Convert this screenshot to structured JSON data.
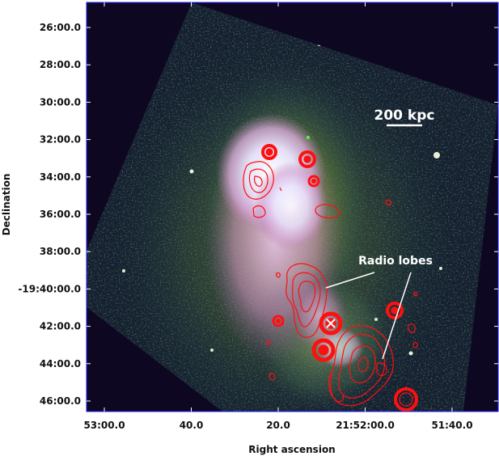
{
  "axes": {
    "xlabel": "Right ascension",
    "ylabel": "Declination",
    "x_ticks": [
      "53:00.0",
      "40.0",
      "20.0",
      "21:52:00.0",
      "51:40.0"
    ],
    "y_ticks": [
      "26:00.0",
      "28:00.0",
      "30:00.0",
      "32:00.0",
      "34:00.0",
      "36:00.0",
      "38:00.0",
      "-19:40:00.0",
      "42:00.0",
      "44:00.0",
      "46:00.0"
    ]
  },
  "annotations": {
    "scale_bar_label": "200 kpc",
    "lobes_label": "Radio lobes"
  },
  "colors": {
    "frame_border": "#1a1aff",
    "background": "#0d0722",
    "contours": "#ff1010",
    "emission_core": "#f2f0ff",
    "emission_halo": "#6e8a3a"
  }
}
